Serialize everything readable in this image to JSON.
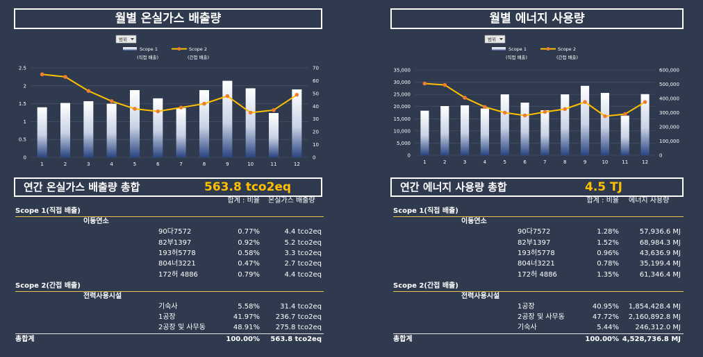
{
  "left_title": "월별 온실가스 배출량",
  "right_title": "월별 에너지 사용량",
  "filter_label": "범위",
  "legend": {
    "scope1": "Scope 1",
    "scope1_sub": "(직접 배출)",
    "scope2": "Scope 2",
    "scope2_sub": "(간접 배출)"
  },
  "chart_data": [
    {
      "type": "bar",
      "title": "월별 온실가스 배출량",
      "categories": [
        "1",
        "2",
        "3",
        "4",
        "5",
        "6",
        "7",
        "8",
        "9",
        "10",
        "11",
        "12"
      ],
      "ylim": [
        0,
        2.5
      ],
      "y2lim": [
        0,
        70
      ],
      "yticks": [
        "0",
        "0.5",
        "1",
        "1.5",
        "2",
        "2.5"
      ],
      "y2ticks": [
        "0",
        "10",
        "20",
        "30",
        "40",
        "50",
        "60",
        "70"
      ],
      "series": [
        {
          "name": "Scope 1",
          "kind": "bar",
          "axis": "left",
          "values": [
            1.4,
            1.52,
            1.57,
            1.5,
            1.88,
            1.65,
            1.38,
            1.88,
            2.14,
            1.93,
            1.24,
            1.9
          ]
        },
        {
          "name": "Scope 2",
          "kind": "line",
          "axis": "right",
          "values": [
            65,
            63,
            52,
            44,
            38,
            36,
            39,
            42,
            48,
            35,
            37,
            49
          ]
        }
      ],
      "colors": {
        "bar_top": "#ffffff",
        "bar_bottom": "#2a4480",
        "line": "#ffc000",
        "marker": "#ed7d31"
      }
    },
    {
      "type": "bar",
      "title": "월별 에너지 사용량",
      "categories": [
        "1",
        "2",
        "3",
        "4",
        "5",
        "6",
        "7",
        "8",
        "9",
        "10",
        "11",
        "12"
      ],
      "ylim": [
        0,
        35000
      ],
      "y2lim": [
        0,
        600000
      ],
      "yticks": [
        "0",
        "5,000",
        "10,000",
        "15,000",
        "20,000",
        "25,000",
        "30,000",
        "35,000"
      ],
      "y2ticks": [
        "0",
        "100,000",
        "200,000",
        "300,000",
        "400,000",
        "500,000",
        "600,000"
      ],
      "series": [
        {
          "name": "Scope 1",
          "kind": "bar",
          "axis": "left",
          "values": [
            18300,
            20200,
            20500,
            19200,
            25000,
            21600,
            18500,
            25000,
            28500,
            25600,
            16300,
            25100
          ]
        },
        {
          "name": "Scope 2",
          "kind": "line",
          "axis": "right",
          "values": [
            505000,
            495000,
            405000,
            340000,
            300000,
            280000,
            305000,
            325000,
            375000,
            275000,
            290000,
            375000
          ]
        }
      ],
      "colors": {
        "bar_top": "#ffffff",
        "bar_bottom": "#2a4480",
        "line": "#ffc000",
        "marker": "#ed7d31"
      }
    }
  ],
  "left_summary": {
    "title": "연간 온실가스 배출량 총합",
    "total": "563.8 tco2eq",
    "col_ratio": "합계 : 비율",
    "col_value": "온실가스 배출량",
    "scope1_label": "Scope 1(직접 배출)",
    "scope1_group": "이동연소",
    "scope1_rows": [
      {
        "name": "90다7572",
        "ratio": "0.77%",
        "value": "4.4 tco2eq"
      },
      {
        "name": "82부1397",
        "ratio": "0.92%",
        "value": "5.2 tco2eq"
      },
      {
        "name": "193허5778",
        "ratio": "0.58%",
        "value": "3.3 tco2eq"
      },
      {
        "name": "804너3221",
        "ratio": "0.47%",
        "value": "2.7 tco2eq"
      },
      {
        "name": "172허 4886",
        "ratio": "0.79%",
        "value": "4.4 tco2eq"
      }
    ],
    "scope2_label": "Scope 2(간접 배출)",
    "scope2_group": "전력사용시설",
    "scope2_rows": [
      {
        "name": "기숙사",
        "ratio": "5.58%",
        "value": "31.4 tco2eq"
      },
      {
        "name": "1공장",
        "ratio": "41.97%",
        "value": "236.7 tco2eq"
      },
      {
        "name": "2공장 및 사무동",
        "ratio": "48.91%",
        "value": "275.8 tco2eq"
      }
    ],
    "grand_label": "총합계",
    "grand_ratio": "100.00%",
    "grand_value": "563.8 tco2eq"
  },
  "right_summary": {
    "title": "연간 에너지 사용량 총합",
    "total": "4.5 TJ",
    "col_ratio": "합계 : 비율",
    "col_value": "에너지 사용량",
    "scope1_label": "Scope 1(직접 배출)",
    "scope1_group": "이동연소",
    "scope1_rows": [
      {
        "name": "90다7572",
        "ratio": "1.28%",
        "value": "57,936.6 MJ"
      },
      {
        "name": "82부1397",
        "ratio": "1.52%",
        "value": "68,984.3 MJ"
      },
      {
        "name": "193허5778",
        "ratio": "0.96%",
        "value": "43,636.9 MJ"
      },
      {
        "name": "804너3221",
        "ratio": "0.78%",
        "value": "35,199.4 MJ"
      },
      {
        "name": "172허 4886",
        "ratio": "1.35%",
        "value": "61,346.4 MJ"
      }
    ],
    "scope2_label": "Scope 2(간접 배출)",
    "scope2_group": "전력사용시설",
    "scope2_rows": [
      {
        "name": "1공장",
        "ratio": "40.95%",
        "value": "1,854,428.4 MJ"
      },
      {
        "name": "2공장 및 사무동",
        "ratio": "47.72%",
        "value": "2,160,892.8 MJ"
      },
      {
        "name": "기숙사",
        "ratio": "5.44%",
        "value": "246,312.0 MJ"
      }
    ],
    "grand_label": "총합계",
    "grand_ratio": "100.00%",
    "grand_value": "4,528,736.8 MJ"
  }
}
